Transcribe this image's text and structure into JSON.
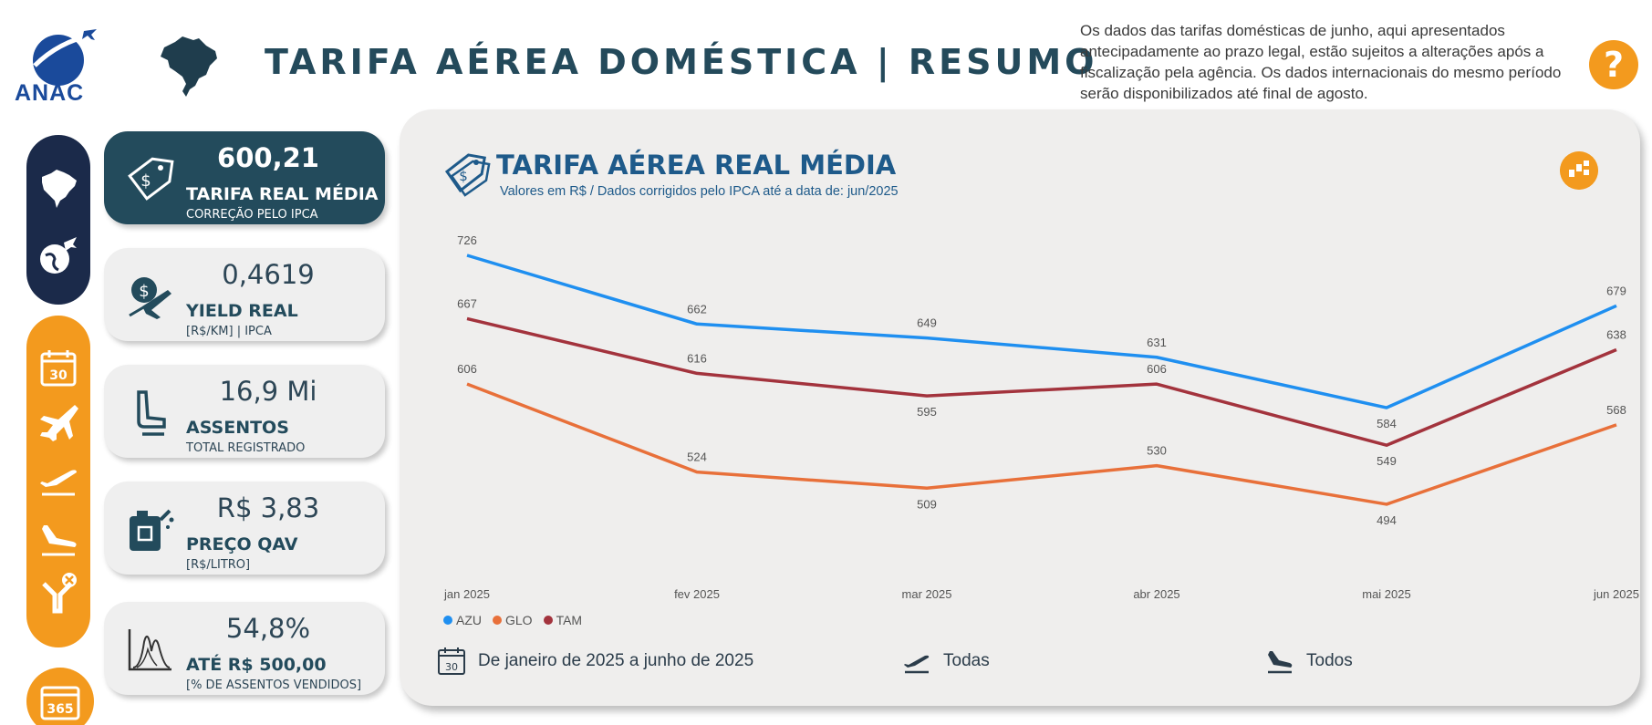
{
  "header": {
    "logo_text": "ANAC",
    "title": "TARIFA AÉREA DOMÉSTICA  |  RESUMO",
    "notice": "Os dados das tarifas domésticas de junho, aqui apresentados antecipadamente ao prazo legal, estão sujeitos a alterações após a fiscalização pela agência. Os dados internacionais do mesmo período serão disponibilizados até final de agosto.",
    "help_label": "?"
  },
  "nav": {
    "items": [
      "brazil-map-icon",
      "globe-plane-icon",
      "calendar-30-icon",
      "airplane-icon",
      "takeoff-icon",
      "landing-icon",
      "route-cancel-icon",
      "calendar-365-icon"
    ]
  },
  "kpis": [
    {
      "value": "600,21",
      "label": "TARIFA REAL MÉDIA",
      "sub": "CORREÇÃO PELO IPCA",
      "icon": "price-tag-icon"
    },
    {
      "value": "0,4619",
      "label": "YIELD REAL",
      "sub": "[R$/KM] | IPCA",
      "icon": "money-plane-icon"
    },
    {
      "value": "16,9 Mi",
      "label": "ASSENTOS",
      "sub": "TOTAL REGISTRADO",
      "icon": "seat-icon"
    },
    {
      "value": "R$ 3,83",
      "label": "PREÇO QAV",
      "sub": "[R$/LITRO]",
      "icon": "fuel-can-icon"
    },
    {
      "value": "54,8%",
      "label": "ATÉ R$ 500,00",
      "sub": "[% DE ASSENTOS VENDIDOS]",
      "icon": "distribution-icon"
    }
  ],
  "panel": {
    "title": "TARIFA AÉREA REAL MÉDIA",
    "subtitle": "Valores em R$ / Dados corrigidos pelo IPCA até a data de: jun/2025",
    "filters": {
      "period": "De janeiro de 2025 a junho de 2025",
      "departures": "Todas",
      "arrivals": "Todos"
    }
  },
  "colors": {
    "accent": "#f39a1e",
    "dark": "#234b5c",
    "AZU": "#1f8ff0",
    "GLO": "#e8703a",
    "TAM": "#a3333d"
  },
  "chart_data": {
    "type": "line",
    "x": [
      "jan 2025",
      "fev 2025",
      "mar 2025",
      "abr 2025",
      "mai 2025",
      "jun 2025"
    ],
    "series": [
      {
        "name": "AZU",
        "values": [
          726,
          662,
          649,
          631,
          584,
          679
        ]
      },
      {
        "name": "GLO",
        "values": [
          606,
          524,
          509,
          530,
          494,
          568
        ]
      },
      {
        "name": "TAM",
        "values": [
          667,
          616,
          595,
          606,
          549,
          638
        ]
      }
    ],
    "title": "TARIFA AÉREA REAL MÉDIA",
    "subtitle": "Valores em R$ / Dados corrigidos pelo IPCA até a data de: jun/2025",
    "ylim": [
      420,
      760
    ],
    "grid": false,
    "legend": "bottom-left"
  }
}
